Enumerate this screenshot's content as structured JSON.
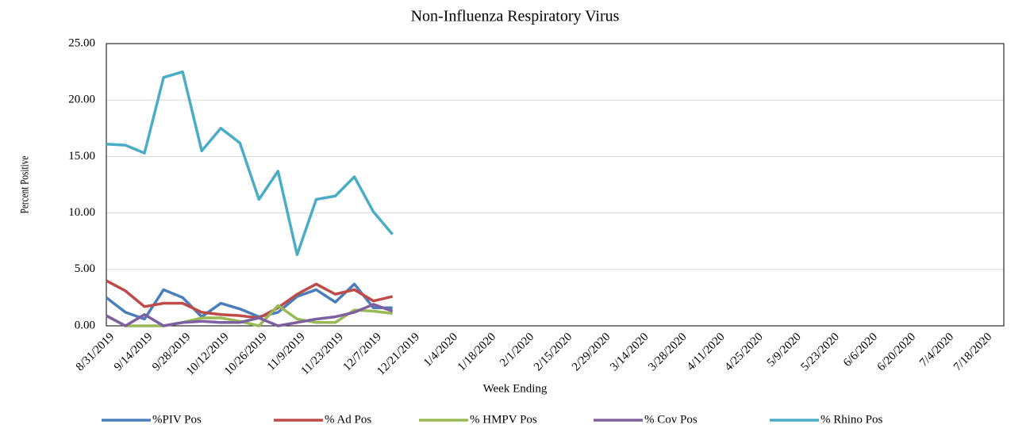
{
  "chart_data": {
    "type": "line",
    "title": "Non-Influenza  Respiratory Virus",
    "x_label": "Week Ending",
    "y_label": "Percent Positive",
    "categories": [
      "8/31/2019",
      null,
      "9/14/2019",
      null,
      "9/28/2019",
      null,
      "10/12/2019",
      null,
      "10/26/2019",
      null,
      "11/9/2019",
      null,
      "11/23/2019",
      null,
      "12/7/2019",
      null,
      "12/21/2019",
      null,
      "1/4/2020",
      null,
      "1/18/2020",
      null,
      "2/1/2020",
      null,
      "2/15/2020",
      null,
      "2/29/2020",
      null,
      "3/14/2020",
      null,
      "3/28/2020",
      null,
      "4/11/2020",
      null,
      "4/25/2020",
      null,
      "5/9/2020",
      null,
      "5/23/2020",
      null,
      "6/6/2020",
      null,
      "6/20/2020",
      null,
      "7/4/2020",
      null,
      "7/18/2020"
    ],
    "ylim": [
      0,
      25
    ],
    "yticks": [
      {
        "value": 0,
        "label": "0.00"
      },
      {
        "value": 5,
        "label": "5.00"
      },
      {
        "value": 10,
        "label": "10.00"
      },
      {
        "value": 15,
        "label": "15.00"
      },
      {
        "value": 20,
        "label": "20.00"
      },
      {
        "value": 25,
        "label": "25.00"
      }
    ],
    "grid": true,
    "legend": "bottom",
    "series": [
      {
        "name": "%PIV Pos",
        "color": "#4a7ebb",
        "values": [
          2.5,
          1.2,
          0.6,
          3.2,
          2.5,
          0.8,
          2.0,
          1.5,
          0.8,
          1.2,
          2.6,
          3.2,
          2.1,
          3.7,
          1.6,
          1.6,
          null,
          null,
          null,
          null,
          null,
          null,
          null,
          null,
          null,
          null,
          null,
          null,
          null,
          null,
          null,
          null,
          null,
          null,
          null,
          null,
          null,
          null,
          null,
          null,
          null,
          null,
          null,
          null,
          null,
          null,
          null
        ]
      },
      {
        "name": "% Ad Pos",
        "color": "#be4b48",
        "values": [
          4.0,
          3.1,
          1.7,
          2.0,
          2.0,
          1.2,
          1.0,
          0.9,
          0.7,
          1.6,
          2.8,
          3.7,
          2.8,
          3.2,
          2.2,
          2.6,
          null,
          null,
          null,
          null,
          null,
          null,
          null,
          null,
          null,
          null,
          null,
          null,
          null,
          null,
          null,
          null,
          null,
          null,
          null,
          null,
          null,
          null,
          null,
          null,
          null,
          null,
          null,
          null,
          null,
          null,
          null
        ]
      },
      {
        "name": "% HMPV Pos",
        "color": "#98b954",
        "values": [
          0.9,
          0,
          0,
          0,
          0.3,
          0.7,
          0.7,
          0.4,
          0,
          1.8,
          0.6,
          0.3,
          0.3,
          1.4,
          1.3,
          1.1,
          null,
          null,
          null,
          null,
          null,
          null,
          null,
          null,
          null,
          null,
          null,
          null,
          null,
          null,
          null,
          null,
          null,
          null,
          null,
          null,
          null,
          null,
          null,
          null,
          null,
          null,
          null,
          null,
          null,
          null,
          null
        ]
      },
      {
        "name": "% Cov Pos",
        "color": "#7d60a0",
        "values": [
          0.9,
          0,
          1.0,
          0,
          0.3,
          0.4,
          0.3,
          0.3,
          0.7,
          0,
          0.3,
          0.6,
          0.8,
          1.2,
          1.9,
          1.3,
          null,
          null,
          null,
          null,
          null,
          null,
          null,
          null,
          null,
          null,
          null,
          null,
          null,
          null,
          null,
          null,
          null,
          null,
          null,
          null,
          null,
          null,
          null,
          null,
          null,
          null,
          null,
          null,
          null,
          null,
          null
        ]
      },
      {
        "name": "% Rhino Pos",
        "color": "#4bacc6",
        "values": [
          16.1,
          16.0,
          15.3,
          22.0,
          22.5,
          15.5,
          17.5,
          16.2,
          11.2,
          13.7,
          6.3,
          11.2,
          11.5,
          13.2,
          10.1,
          8.1,
          null,
          null,
          null,
          null,
          null,
          null,
          null,
          null,
          null,
          null,
          null,
          null,
          null,
          null,
          null,
          null,
          null,
          null,
          null,
          null,
          null,
          null,
          null,
          null,
          null,
          null,
          null,
          null,
          null,
          null,
          null
        ]
      }
    ]
  }
}
